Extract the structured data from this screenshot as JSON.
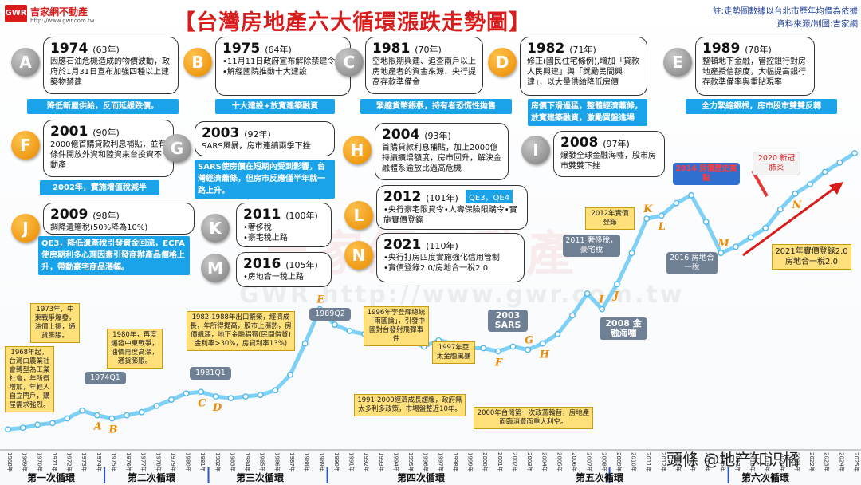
{
  "header": {
    "title": "【台灣房地產六大循環漲跌走勢圖】",
    "note_line1": "註:走勢圖數據以台北市歷年均價為依據",
    "note_line2": "資料來源/制圖:吉家網",
    "logo_mark": "GWR",
    "logo_name": "吉家網不動產",
    "logo_url": "http://www.gwr.com.tw"
  },
  "watermark": {
    "text1": "吉家網不動產",
    "text2": "GWR  http://www.gwr.com.tw"
  },
  "events": [
    {
      "letter": "A",
      "style": "gray",
      "year": "1974",
      "roc": "(63年)",
      "text": "因應石油危機造成的物價波動，政府於1月31日宣布加強四種以上建築物禁建",
      "banner": "降低新屋供給，反而延緩跌價。"
    },
    {
      "letter": "B",
      "style": "orange",
      "year": "1975",
      "roc": "(64年)",
      "text": "•11月11日政府宣布解除禁建令\n•解經國院推動十大建設",
      "banner": "十大建設+放寬建築融資"
    },
    {
      "letter": "C",
      "style": "gray",
      "year": "1981",
      "roc": "(70年)",
      "text": "空地限期興建、追查兩戶以上房地產者的資金來源、央行提高存款準備金",
      "banner": "緊縮貨幣銀根，持有者恐慌性拋售"
    },
    {
      "letter": "D",
      "style": "orange",
      "year": "1982",
      "roc": "(71年)",
      "text": "修正(國民住宅條例),增加「貸款人民興建」與「獎勵民間興建」，以大量供給降低房價",
      "banner": "房價下滑過猛，整體經濟蕭條，放寬建築融資，激勵買盤進場"
    },
    {
      "letter": "E",
      "style": "gray",
      "year": "1989",
      "roc": "(78年)",
      "text": "整頓地下金融，管控銀行對房地產授信額度，大幅提高銀行存款準備率與重貼現率",
      "banner": "全力緊縮銀根，房市股市雙雙反轉"
    },
    {
      "letter": "F",
      "style": "orange",
      "year": "2001",
      "roc": "(90年)",
      "text": "2000億首購貸款利息補貼，並有條件開放外資和陸資來台投資不動產",
      "banner": "2002年，實施增值稅減半"
    },
    {
      "letter": "G",
      "style": "gray",
      "year": "2003",
      "roc": "(92年)",
      "text": "SARS風暴，房市連續兩季下挫",
      "banner": "SARS使房價在短期內受到影響，台灣經濟蕭條，但房市反應僅半年就一路上升。"
    },
    {
      "letter": "H",
      "style": "orange",
      "year": "2004",
      "roc": "(93年)",
      "text": "首購貸款利息補貼，加上2000億持續擴增額度，房市回升，解決金融體系逾放比過高危機",
      "banner": ""
    },
    {
      "letter": "I",
      "style": "gray",
      "year": "2008",
      "roc": "(97年)",
      "text": "爆發全球金融海嘯，股市房市雙雙下挫",
      "banner": ""
    },
    {
      "letter": "J",
      "style": "orange",
      "year": "2009",
      "roc": "(98年)",
      "text": "調降遺贈稅(50%降為10%)",
      "banner": "QE3，降低遺產稅引發資金回流，ECFA使房期利多心理因素引發商辦產品價格上升，帶動豪宅商品漲幅。"
    },
    {
      "letter": "K",
      "style": "gray",
      "year": "2011",
      "roc": "(100年)",
      "text": "•奢侈稅\n•豪宅稅上路",
      "banner": ""
    },
    {
      "letter": "L",
      "style": "orange",
      "year": "2012",
      "roc": "(101年)",
      "text": "•央行豪宅限貸令•人壽保險限購令•實施實價登錄",
      "banner": "",
      "qe": "QE3，QE4"
    },
    {
      "letter": "M",
      "style": "gray",
      "year": "2016",
      "roc": "(105年)",
      "text": "•房地合一稅上路",
      "banner": ""
    },
    {
      "letter": "N",
      "style": "orange",
      "year": "2021",
      "roc": "(110年)",
      "text": "•央行打房四度實施強化信用管制\n•實價登錄2.0/房地合一稅2.0",
      "banner": ""
    }
  ],
  "annotations_yellow": [
    "1968年起，台灣由農業社會轉型為工業社會，年所得增加，年輕人自立門戶，購屋需求強烈。",
    "1973年，中東戰爭爆發，油價上揚，通貨膨脹。",
    "1980年，再度爆發中東戰爭，油價再度高漲，通貨膨脹。",
    "1982-1988年出口繁榮，經濟成長，年所得提高，股市上漲熱，房價飆漲，地下金融猖獗(民間借貸)金利率>30%，房貸利率13%)",
    "1996年李登輝總統「兩國論」，引發中國對台發射飛彈事件",
    "1997年亞太金融風暴",
    "1991-2000經濟成長趨緩，政府無太多利多政策，市場盤整近10年。",
    "2000年台灣第一次政黨輪替，房地產面臨消費面重大利空。",
    "2012年實價登錄",
    "2021年實價登錄2.0 房地合一稅2.0"
  ],
  "annotations_gray": [
    "1974Q1",
    "1981Q1",
    "1989Q2",
    "2003 SARS",
    "2008 金融海嘯",
    "2011 奢侈稅，豪宅稅",
    "2016 房地合一稅"
  ],
  "annotations_red": [
    "2014 房價歷史高點",
    "2020 新冠肺炎"
  ],
  "cycles": [
    "第一次循環",
    "第二次循環",
    "第三次循環",
    "第四次循環",
    "第五次循環",
    "第六次循環"
  ],
  "footer": "頭條 @地产知识橘",
  "chart_data": {
    "type": "line",
    "title": "【台灣房地產六大循環漲跌走勢圖】",
    "xlabel": "",
    "ylabel": "",
    "x": [
      "1968年",
      "1969年",
      "1970年",
      "1971年",
      "1972年",
      "1973年",
      "1974年",
      "1975年",
      "1976年",
      "1977年",
      "1978年",
      "1979年",
      "1980年",
      "1981年",
      "1982年",
      "1983年",
      "1984年",
      "1985年",
      "1986年",
      "1987年",
      "1988年",
      "1989年",
      "1990年",
      "1991年",
      "1992年",
      "1993年",
      "1994年",
      "1995年",
      "1996年",
      "1997年",
      "1998年",
      "1999年",
      "2000年",
      "2001年",
      "2002年",
      "2003年",
      "2004年",
      "2005年",
      "2006年",
      "2007年",
      "2008年",
      "2009年",
      "2010年",
      "2011年",
      "2012年",
      "2013年",
      "2014年",
      "2015年",
      "2016年",
      "2017年",
      "2018年",
      "2019年",
      "2020年",
      "2021年",
      "2022年",
      "2023年",
      "2024年",
      "2025年"
    ],
    "values": [
      5,
      6,
      8,
      9,
      12,
      17,
      14,
      12,
      14,
      16,
      20,
      24,
      28,
      29,
      26,
      25,
      26,
      27,
      30,
      40,
      60,
      82,
      72,
      68,
      66,
      64,
      64,
      62,
      58,
      62,
      60,
      57,
      57,
      55,
      58,
      56,
      60,
      66,
      78,
      92,
      82,
      98,
      118,
      140,
      142,
      150,
      155,
      138,
      118,
      122,
      128,
      134,
      146,
      156,
      162,
      170,
      176,
      182
    ],
    "point_letters": [
      {
        "letter": "A",
        "x": "1974年"
      },
      {
        "letter": "B",
        "x": "1975年"
      },
      {
        "letter": "C",
        "x": "1981年"
      },
      {
        "letter": "D",
        "x": "1982年"
      },
      {
        "letter": "E",
        "x": "1989年"
      },
      {
        "letter": "F",
        "x": "2001年"
      },
      {
        "letter": "G",
        "x": "2003年"
      },
      {
        "letter": "H",
        "x": "2004年"
      },
      {
        "letter": "I",
        "x": "2008年"
      },
      {
        "letter": "J",
        "x": "2009年"
      },
      {
        "letter": "K",
        "x": "2011年"
      },
      {
        "letter": "L",
        "x": "2012年"
      },
      {
        "letter": "M",
        "x": "2016年"
      },
      {
        "letter": "N",
        "x": "2021年"
      }
    ]
  }
}
